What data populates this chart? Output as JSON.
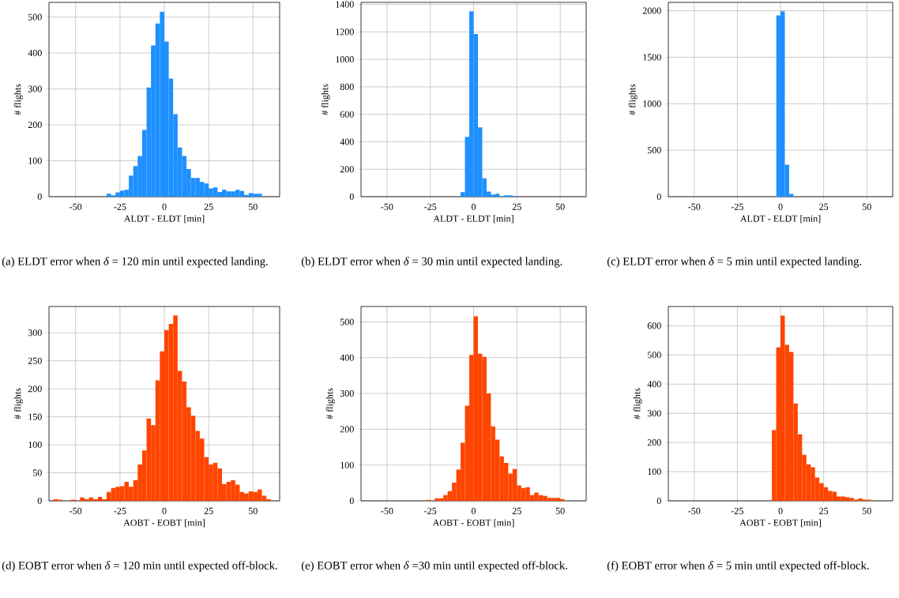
{
  "chart_data": [
    {
      "type": "histogram",
      "color": "#1e90ff",
      "xlabel": "ALDT - ELDT [min]",
      "ylabel": "# flights",
      "grid": true,
      "xlim": [
        -65,
        65
      ],
      "ylim": [
        0,
        541
      ],
      "xticks": [
        -50,
        -25,
        0,
        25,
        50
      ],
      "yticks": [
        0,
        100,
        200,
        300,
        400,
        500
      ],
      "bins": [
        -32.5,
        -30,
        -27.5,
        -25,
        -22.5,
        -20,
        -17.5,
        -15,
        -12.5,
        -10,
        -7.5,
        -5,
        -2.5,
        0,
        2.5,
        5,
        7.5,
        10,
        12.5,
        15,
        17.5,
        20,
        22.5,
        25,
        27.5,
        30,
        32.5,
        35,
        37.5,
        40,
        42.5,
        45,
        47.5,
        50,
        52.5,
        55
      ],
      "values": [
        8,
        4,
        12,
        17,
        19,
        59,
        85,
        113,
        186,
        304,
        421,
        482,
        515,
        432,
        329,
        230,
        137,
        113,
        77,
        52,
        52,
        41,
        37,
        23,
        26,
        13,
        19,
        15,
        15,
        19,
        16,
        5,
        10,
        8,
        8
      ],
      "annotations": [
        "(a) ELDT error when *δ* = 120 min until expected landing."
      ]
    },
    {
      "type": "histogram",
      "color": "#1e90ff",
      "xlabel": "ALDT - ELDT [min]",
      "ylabel": "# flights",
      "grid": true,
      "xlim": [
        -65,
        65
      ],
      "ylim": [
        0,
        1415
      ],
      "xticks": [
        -50,
        -25,
        0,
        25,
        50
      ],
      "yticks": [
        0,
        200,
        400,
        600,
        800,
        1000,
        1200,
        1400
      ],
      "bins": [
        -7.5,
        -5,
        -2.5,
        0,
        2.5,
        5,
        7.5,
        10,
        12.5,
        15,
        17.5,
        20,
        22.5,
        25
      ],
      "values": [
        33,
        435,
        1350,
        1185,
        505,
        133,
        38,
        16,
        21,
        3,
        10,
        10,
        3
      ],
      "annotations": [
        "(b) ELDT error when *δ* = 30 min until expected landing."
      ]
    },
    {
      "type": "histogram",
      "color": "#1e90ff",
      "xlabel": "ALDT - ELDT [min]",
      "ylabel": "# flights",
      "grid": true,
      "xlim": [
        -65,
        65
      ],
      "ylim": [
        0,
        2090
      ],
      "xticks": [
        -50,
        -25,
        0,
        25,
        50
      ],
      "yticks": [
        0,
        500,
        1000,
        1500,
        2000
      ],
      "bins": [
        -2.5,
        0,
        2.5,
        5,
        7.5
      ],
      "values": [
        1950,
        1995,
        345,
        30
      ],
      "annotations": [
        "(c) ELDT error when *δ* = 5 min until expected landing."
      ]
    },
    {
      "type": "histogram",
      "color": "#ff4500",
      "xlabel": "AOBT - EOBT [min]",
      "ylabel": "# flights",
      "grid": true,
      "xlim": [
        -65,
        65
      ],
      "ylim": [
        0,
        347
      ],
      "xticks": [
        -50,
        -25,
        0,
        25,
        50
      ],
      "yticks": [
        0,
        50,
        100,
        150,
        200,
        250,
        300
      ],
      "bins": [
        -62.5,
        -60,
        -57.5,
        -55,
        -52.5,
        -50,
        -47.5,
        -45,
        -42.5,
        -40,
        -37.5,
        -35,
        -32.5,
        -30,
        -27.5,
        -25,
        -22.5,
        -20,
        -17.5,
        -15,
        -12.5,
        -10,
        -7.5,
        -5,
        -2.5,
        0,
        2.5,
        5,
        7.5,
        10,
        12.5,
        15,
        17.5,
        20,
        22.5,
        25,
        27.5,
        30,
        32.5,
        35,
        37.5,
        40,
        42.5,
        45,
        47.5,
        50,
        52.5,
        55,
        57.5,
        60
      ],
      "values": [
        3,
        2,
        0,
        0,
        2,
        0,
        6,
        3,
        6,
        3,
        7,
        3,
        16,
        23,
        25,
        26,
        34,
        25,
        37,
        65,
        90,
        147,
        135,
        215,
        267,
        305,
        316,
        331,
        232,
        213,
        167,
        152,
        125,
        111,
        78,
        65,
        68,
        58,
        30,
        34,
        37,
        29,
        16,
        13,
        17,
        16,
        20,
        9,
        3
      ],
      "annotations": [
        "(d) EOBT error when *δ* = 120 min until expected off-block."
      ]
    },
    {
      "type": "histogram",
      "color": "#ff4500",
      "xlabel": "AOBT - EOBT [min]",
      "ylabel": "# flights",
      "grid": true,
      "xlim": [
        -65,
        65
      ],
      "ylim": [
        0,
        543
      ],
      "xticks": [
        -50,
        -25,
        0,
        25,
        50
      ],
      "yticks": [
        0,
        100,
        200,
        300,
        400,
        500
      ],
      "bins": [
        -27.5,
        -25,
        -22.5,
        -20,
        -17.5,
        -15,
        -12.5,
        -10,
        -7.5,
        -5,
        -2.5,
        0,
        2.5,
        5,
        7.5,
        10,
        12.5,
        15,
        17.5,
        20,
        22.5,
        25,
        27.5,
        30,
        32.5,
        35,
        37.5,
        40,
        42.5,
        45,
        47.5,
        50,
        52.5
      ],
      "values": [
        3,
        0,
        7,
        7,
        16,
        27,
        51,
        87,
        162,
        266,
        408,
        516,
        411,
        402,
        300,
        208,
        171,
        124,
        106,
        76,
        89,
        43,
        36,
        38,
        16,
        23,
        16,
        14,
        8,
        8,
        8,
        5
      ],
      "annotations": [
        "(e) EOBT error when *δ* =30 min until expected off-block."
      ]
    },
    {
      "type": "histogram",
      "color": "#ff4500",
      "xlabel": "AOBT - EOBT [min]",
      "ylabel": "# flights",
      "grid": true,
      "xlim": [
        -65,
        65
      ],
      "ylim": [
        0,
        666
      ],
      "xticks": [
        -50,
        -25,
        0,
        25,
        50
      ],
      "yticks": [
        0,
        100,
        200,
        300,
        400,
        500,
        600
      ],
      "bins": [
        -5,
        -2.5,
        0,
        2.5,
        5,
        7.5,
        10,
        12.5,
        15,
        17.5,
        20,
        22.5,
        25,
        27.5,
        30,
        32.5,
        35,
        37.5,
        40,
        42.5,
        45,
        47.5,
        50,
        52.5
      ],
      "values": [
        242,
        526,
        635,
        535,
        510,
        334,
        228,
        158,
        125,
        115,
        80,
        61,
        47,
        34,
        31,
        15,
        15,
        12,
        10,
        4,
        8,
        4,
        4
      ],
      "annotations": [
        "(f) EOBT error when *δ* = 5 min until expected off-block."
      ]
    }
  ]
}
